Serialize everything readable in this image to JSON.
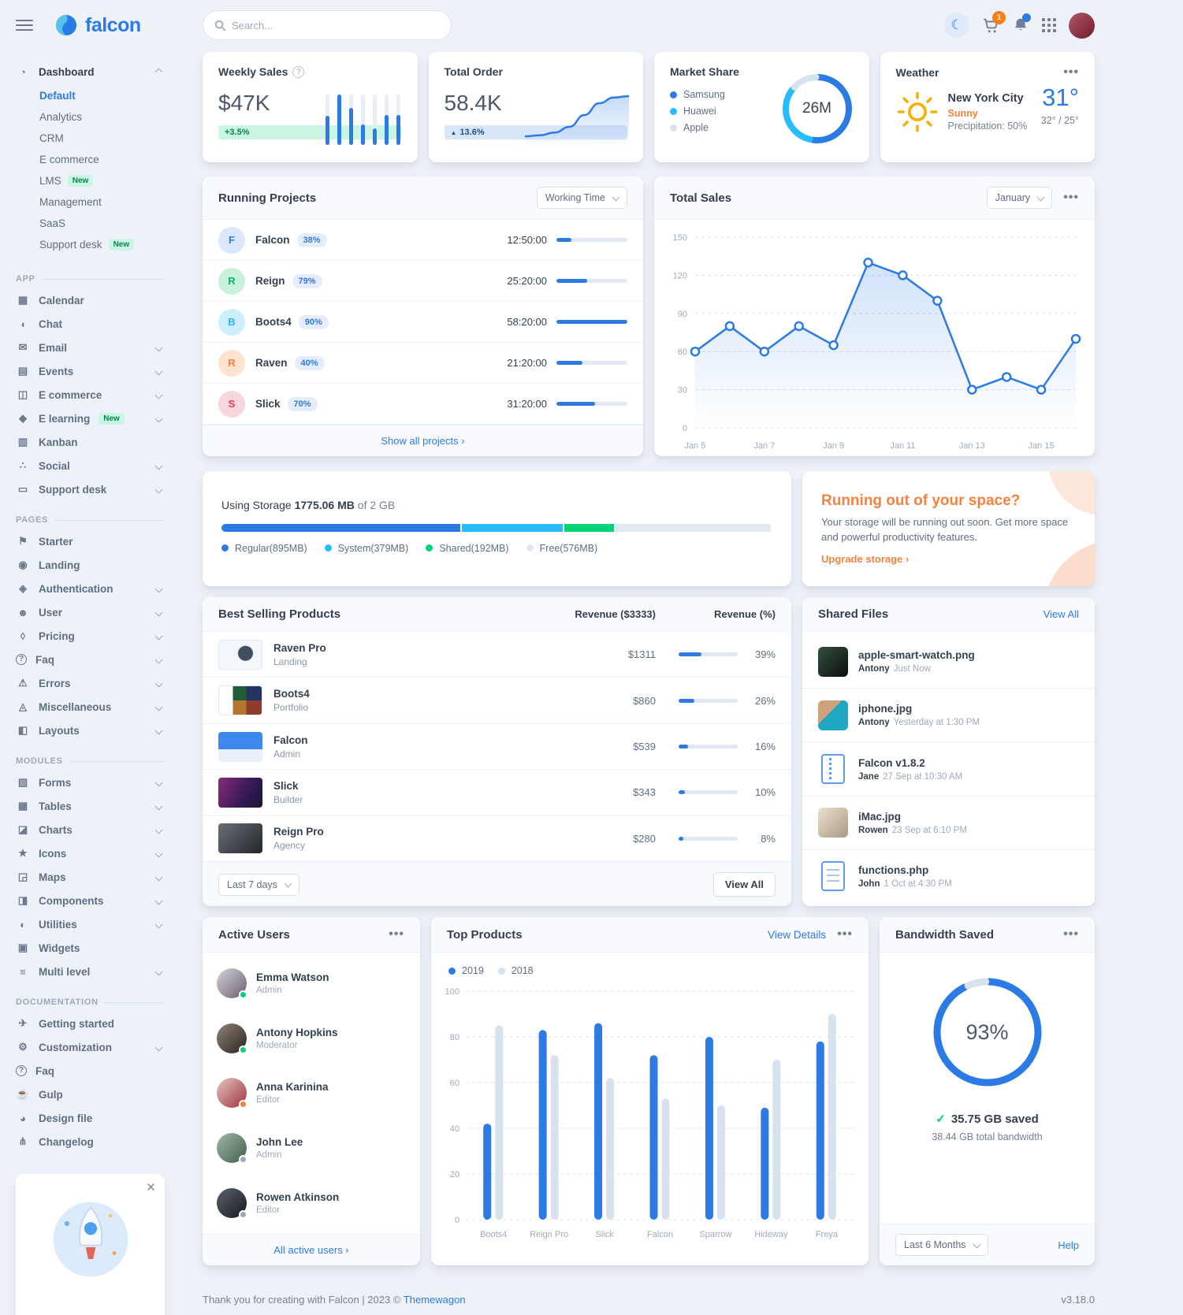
{
  "ui": {
    "ellipsis": "•••",
    "help": "?",
    "caret_up": "▲",
    "check": "✓",
    "chevron_right": "›",
    "moon": "☾",
    "close": "×"
  },
  "navbar": {
    "brand": "falcon",
    "search_placeholder": "Search...",
    "cart_badge": "1"
  },
  "sidebar": {
    "groups": [
      {
        "label": "",
        "items": [
          {
            "label": "Dashboard",
            "icon": "dashboard",
            "glyph": "◔",
            "chevron": "up",
            "children": [
              {
                "label": "Default",
                "active": true
              },
              {
                "label": "Analytics"
              },
              {
                "label": "CRM"
              },
              {
                "label": "E commerce"
              },
              {
                "label": "LMS",
                "badge": "New"
              },
              {
                "label": "Management"
              },
              {
                "label": "SaaS"
              },
              {
                "label": "Support desk",
                "badge": "New"
              }
            ]
          }
        ]
      },
      {
        "label": "App",
        "items": [
          {
            "label": "Calendar",
            "icon": "calendar",
            "glyph": "▦"
          },
          {
            "label": "Chat",
            "icon": "chat",
            "glyph": "◖"
          },
          {
            "label": "Email",
            "icon": "email",
            "glyph": "✉",
            "chevron": "down"
          },
          {
            "label": "Events",
            "icon": "events",
            "glyph": "▤",
            "chevron": "down"
          },
          {
            "label": "E commerce",
            "icon": "shopping-cart",
            "glyph": "◫",
            "chevron": "down"
          },
          {
            "label": "E learning",
            "icon": "graduation-cap",
            "glyph": "◆",
            "badge": "New",
            "chevron": "down"
          },
          {
            "label": "Kanban",
            "icon": "kanban",
            "glyph": "▥"
          },
          {
            "label": "Social",
            "icon": "share",
            "glyph": "∴",
            "chevron": "down"
          },
          {
            "label": "Support desk",
            "icon": "ticket",
            "glyph": "▭",
            "chevron": "down"
          }
        ]
      },
      {
        "label": "Pages",
        "items": [
          {
            "label": "Starter",
            "icon": "flag",
            "glyph": "⚑"
          },
          {
            "label": "Landing",
            "icon": "globe",
            "glyph": "◉"
          },
          {
            "label": "Authentication",
            "icon": "lock",
            "glyph": "◈",
            "chevron": "down"
          },
          {
            "label": "User",
            "icon": "user",
            "glyph": "☻",
            "chevron": "down"
          },
          {
            "label": "Pricing",
            "icon": "tags",
            "glyph": "◊",
            "chevron": "down"
          },
          {
            "label": "Faq",
            "icon": "question-circle",
            "glyph": "?",
            "chevron": "down"
          },
          {
            "label": "Errors",
            "icon": "exclamation-triangle",
            "glyph": "⚠",
            "chevron": "down"
          },
          {
            "label": "Miscellaneous",
            "icon": "thumbtack",
            "glyph": "◬",
            "chevron": "down"
          },
          {
            "label": "Layouts",
            "icon": "window-restore",
            "glyph": "◧",
            "chevron": "down"
          }
        ]
      },
      {
        "label": "Modules",
        "items": [
          {
            "label": "Forms",
            "icon": "file-lines",
            "glyph": "▧",
            "chevron": "down"
          },
          {
            "label": "Tables",
            "icon": "table",
            "glyph": "▦",
            "chevron": "down"
          },
          {
            "label": "Charts",
            "icon": "chart-line",
            "glyph": "◪",
            "chevron": "down"
          },
          {
            "label": "Icons",
            "icon": "shapes",
            "glyph": "★",
            "chevron": "down"
          },
          {
            "label": "Maps",
            "icon": "map",
            "glyph": "◲",
            "chevron": "down"
          },
          {
            "label": "Components",
            "icon": "puzzle-piece",
            "glyph": "◨",
            "chevron": "down"
          },
          {
            "label": "Utilities",
            "icon": "fire",
            "glyph": "◐",
            "chevron": "down"
          },
          {
            "label": "Widgets",
            "icon": "poll",
            "glyph": "▣"
          },
          {
            "label": "Multi level",
            "icon": "layer-group",
            "glyph": "≡",
            "chevron": "down"
          }
        ]
      },
      {
        "label": "Documentation",
        "items": [
          {
            "label": "Getting started",
            "icon": "paper-plane",
            "glyph": "✈"
          },
          {
            "label": "Customization",
            "icon": "wrench",
            "glyph": "⚙",
            "chevron": "down"
          },
          {
            "label": "Faq",
            "icon": "question-circle",
            "glyph": "?"
          },
          {
            "label": "Gulp",
            "icon": "gulp",
            "glyph": "☕"
          },
          {
            "label": "Design file",
            "icon": "palette",
            "glyph": "◕"
          },
          {
            "label": "Changelog",
            "icon": "code-branch",
            "glyph": "⋔"
          }
        ]
      }
    ]
  },
  "weekly_sales": {
    "title": "Weekly Sales",
    "value": "$47K",
    "badge": "+3.5%"
  },
  "total_order": {
    "title": "Total Order",
    "value": "58.4K",
    "badge": "13.6%"
  },
  "market_share": {
    "title": "Market Share",
    "center": "26M"
  },
  "weather": {
    "title": "Weather",
    "city": "New York City",
    "condition": "Sunny",
    "precipitation": "Precipitation: 50%",
    "temp": "31°",
    "range": "32° / 25°"
  },
  "running_projects": {
    "title": "Running Projects",
    "filter": "Working Time",
    "footer_link": "Show all projects",
    "rows": [
      {
        "initial": "F",
        "name": "Falcon",
        "badge": "38%",
        "time": "12:50:00",
        "progress": 21,
        "bg": "#dbe8fb",
        "fg": "#2c7be5"
      },
      {
        "initial": "R",
        "name": "Reign",
        "badge": "79%",
        "time": "25:20:00",
        "progress": 43,
        "bg": "#c7f0dd",
        "fg": "#00b368"
      },
      {
        "initial": "B",
        "name": "Boots4",
        "badge": "90%",
        "time": "58:20:00",
        "progress": 100,
        "bg": "#cdeefd",
        "fg": "#29b6f6"
      },
      {
        "initial": "R",
        "name": "Raven",
        "badge": "40%",
        "time": "21:20:00",
        "progress": 37,
        "bg": "#fde3d0",
        "fg": "#f5803e"
      },
      {
        "initial": "S",
        "name": "Slick",
        "badge": "70%",
        "time": "31:20:00",
        "progress": 54,
        "bg": "#f8d6dd",
        "fg": "#e63757"
      }
    ]
  },
  "total_sales": {
    "title": "Total Sales",
    "filter": "January"
  },
  "storage": {
    "prefix": "Using Storage",
    "used": "1775.06 MB",
    "suffix": "of 2 GB",
    "total_mb": 2048,
    "segments": [
      {
        "name": "Regular(895MB)",
        "mb": 895,
        "color": "#2c7be5"
      },
      {
        "name": "System(379MB)",
        "mb": 379,
        "color": "#27bcfd"
      },
      {
        "name": "Shared(192MB)",
        "mb": 192,
        "color": "#00d27a"
      },
      {
        "name": "Free(576MB)",
        "mb": 576,
        "color": "#e3e9f3"
      }
    ]
  },
  "space": {
    "title": "Running out of your space?",
    "body": "Your storage will be running out soon. Get more space and powerful productivity features.",
    "link": "Upgrade storage"
  },
  "best_selling": {
    "title": "Best Selling Products",
    "col_revenue": "Revenue ($3333)",
    "col_percent": "Revenue (%)",
    "filter": "Last 7 days",
    "view_all": "View All",
    "rows": [
      {
        "name": "Raven Pro",
        "category": "Landing",
        "revenue": "$1311",
        "percent": 39,
        "thumb": "raven"
      },
      {
        "name": "Boots4",
        "category": "Portfolio",
        "revenue": "$860",
        "percent": 26,
        "thumb": "boots4"
      },
      {
        "name": "Falcon",
        "category": "Admin",
        "revenue": "$539",
        "percent": 16,
        "thumb": "falcon"
      },
      {
        "name": "Slick",
        "category": "Builder",
        "revenue": "$343",
        "percent": 10,
        "thumb": "slick"
      },
      {
        "name": "Reign Pro",
        "category": "Agency",
        "revenue": "$280",
        "percent": 8,
        "thumb": "reign"
      }
    ]
  },
  "shared_files": {
    "title": "Shared Files",
    "view_all": "View All",
    "files": [
      {
        "name": "apple-smart-watch.png",
        "user": "Antony",
        "time": "Just Now",
        "thumb": "watch"
      },
      {
        "name": "iphone.jpg",
        "user": "Antony",
        "time": "Yesterday at 1:30 PM",
        "thumb": "iphone"
      },
      {
        "name": "Falcon v1.8.2",
        "user": "Jane",
        "time": "27 Sep at 10:30 AM",
        "thumb": "zip"
      },
      {
        "name": "iMac.jpg",
        "user": "Rowen",
        "time": "23 Sep at 6:10 PM",
        "thumb": "imac"
      },
      {
        "name": "functions.php",
        "user": "John",
        "time": "1 Oct at 4:30 PM",
        "thumb": "code"
      }
    ]
  },
  "active_users": {
    "title": "Active Users",
    "footer_link": "All active users",
    "users": [
      {
        "name": "Emma Watson",
        "role": "Admin",
        "status": "#00d27a",
        "avatar": "emma"
      },
      {
        "name": "Antony Hopkins",
        "role": "Moderator",
        "status": "#00d27a",
        "avatar": "antony"
      },
      {
        "name": "Anna Karinina",
        "role": "Editor",
        "status": "#f5803e",
        "avatar": "anna"
      },
      {
        "name": "John Lee",
        "role": "Admin",
        "status": "#9da9bb",
        "avatar": "john"
      },
      {
        "name": "Rowen Atkinson",
        "role": "Editor",
        "status": "#9da9bb",
        "avatar": "rowen"
      }
    ]
  },
  "top_products": {
    "title": "Top Products",
    "link": "View Details"
  },
  "bandwidth": {
    "title": "Bandwidth Saved",
    "percent": "93%",
    "saved": "35.75 GB saved",
    "total": "38.44 GB total bandwidth",
    "filter": "Last 6 Months",
    "help": "Help"
  },
  "page_footer": {
    "text": "Thank you for creating with Falcon | 2023 © ",
    "link": "Themewagon",
    "version": "v3.18.0"
  },
  "chart_data": [
    {
      "id": "weekly-sales-bars",
      "type": "bar",
      "title": "Weekly Sales",
      "values": [
        58,
        100,
        74,
        41,
        33,
        60,
        60
      ],
      "ylim": [
        0,
        100
      ]
    },
    {
      "id": "total-order-spark",
      "type": "area",
      "title": "Total Order",
      "values": [
        10,
        12,
        18,
        30,
        55,
        80,
        92,
        95
      ]
    },
    {
      "id": "market-share-donut",
      "type": "pie",
      "title": "Market Share",
      "labels": [
        "Samsung",
        "Huawei",
        "Apple"
      ],
      "values": [
        53,
        33,
        14
      ],
      "colors": [
        "#2c7be5",
        "#27bcfd",
        "#d8e2ef"
      ],
      "center_label": "26M"
    },
    {
      "id": "total-sales-line",
      "type": "line",
      "title": "Total Sales",
      "x": [
        "Jan 5",
        "Jan 6",
        "Jan 7",
        "Jan 8",
        "Jan 9",
        "Jan 10",
        "Jan 11",
        "Jan 12",
        "Jan 13",
        "Jan 14",
        "Jan 15",
        "Jan 16"
      ],
      "x_tick_labels": [
        "Jan 5",
        "Jan 7",
        "Jan 9",
        "Jan 11",
        "Jan 13",
        "Jan 15"
      ],
      "values": [
        60,
        80,
        60,
        80,
        65,
        130,
        120,
        100,
        30,
        40,
        30,
        70
      ],
      "yticks": [
        0,
        30,
        60,
        90,
        120,
        150
      ],
      "ylim": [
        0,
        150
      ],
      "grid": "dashed",
      "line_color": "#2c7be5"
    },
    {
      "id": "top-products-bars",
      "type": "bar",
      "title": "Top Products",
      "categories": [
        "Boots4",
        "Reign Pro",
        "Slick",
        "Falcon",
        "Sparrow",
        "Hideway",
        "Freya"
      ],
      "series": [
        {
          "name": "2019",
          "color": "#2c7be5",
          "values": [
            42,
            83,
            86,
            72,
            80,
            49,
            78
          ]
        },
        {
          "name": "2018",
          "color": "#d8e2ef",
          "values": [
            85,
            72,
            62,
            53,
            50,
            70,
            90
          ]
        }
      ],
      "yticks": [
        0,
        20,
        40,
        60,
        80,
        100
      ],
      "ylim": [
        0,
        100
      ],
      "legend_position": "top-left"
    },
    {
      "id": "bandwidth-donut",
      "type": "pie",
      "title": "Bandwidth Saved",
      "values": [
        93,
        7
      ],
      "colors": [
        "#2c7be5",
        "#d8e2ef"
      ],
      "center_label": "93%"
    }
  ]
}
